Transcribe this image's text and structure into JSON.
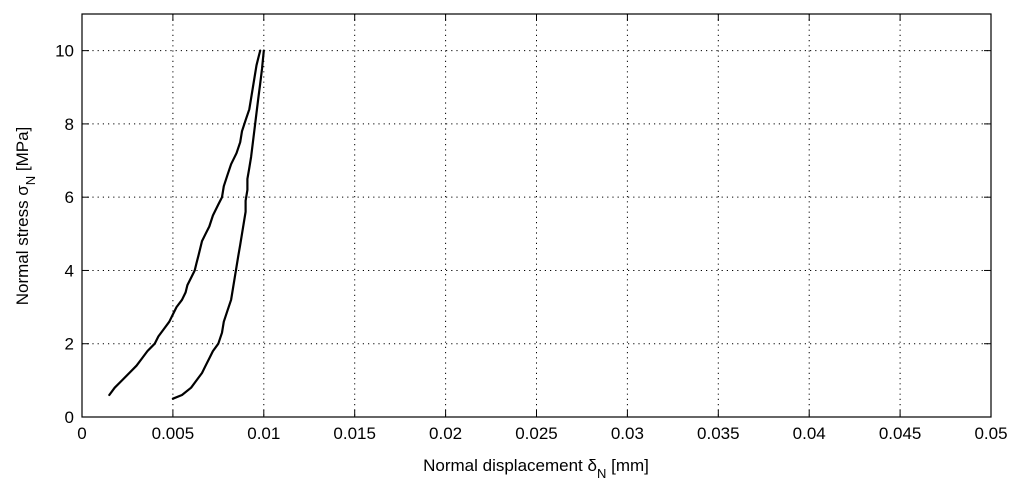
{
  "chart_data": {
    "type": "line",
    "title": "",
    "xlabel": {
      "text": "Normal displacement δ",
      "subscript": "N",
      "suffix": " [mm]"
    },
    "ylabel": {
      "text": "Normal stress σ",
      "subscript": "N",
      "suffix": " [MPa]"
    },
    "xlim": [
      0,
      0.05
    ],
    "ylim": [
      0,
      11
    ],
    "xticks": [
      0,
      0.005,
      0.01,
      0.015,
      0.02,
      0.025,
      0.03,
      0.035,
      0.04,
      0.045,
      0.05
    ],
    "xtick_labels": [
      "0",
      "0.005",
      "0.01",
      "0.015",
      "0.02",
      "0.025",
      "0.03",
      "0.035",
      "0.04",
      "0.045",
      "0.05"
    ],
    "yticks": [
      0,
      2,
      4,
      6,
      8,
      10
    ],
    "ytick_labels": [
      "0",
      "2",
      "4",
      "6",
      "8",
      "10"
    ],
    "grid": true,
    "legend": false,
    "series_color": "#000000",
    "series": [
      {
        "x": [
          0.0015,
          0.0018,
          0.0022,
          0.0026,
          0.003,
          0.0033,
          0.0036,
          0.004,
          0.0042,
          0.0045,
          0.0048,
          0.005,
          0.0052,
          0.0055,
          0.0057,
          0.0058,
          0.006,
          0.0062,
          0.0063,
          0.0064,
          0.0065,
          0.0066,
          0.0068,
          0.007,
          0.0072,
          0.0075,
          0.0077,
          0.0078,
          0.008,
          0.0082,
          0.0085,
          0.0087,
          0.0088,
          0.009,
          0.0092,
          0.0093,
          0.0094,
          0.0095,
          0.0096,
          0.0097,
          0.0098
        ],
        "y": [
          0.6,
          0.8,
          1.0,
          1.2,
          1.4,
          1.6,
          1.8,
          2.0,
          2.2,
          2.4,
          2.6,
          2.8,
          3.0,
          3.2,
          3.4,
          3.6,
          3.8,
          4.0,
          4.2,
          4.4,
          4.6,
          4.8,
          5.0,
          5.2,
          5.5,
          5.8,
          6.0,
          6.3,
          6.6,
          6.9,
          7.2,
          7.5,
          7.8,
          8.1,
          8.4,
          8.7,
          9.0,
          9.3,
          9.6,
          9.8,
          10.0
        ]
      },
      {
        "x": [
          0.005,
          0.0055,
          0.006,
          0.0063,
          0.0066,
          0.0068,
          0.007,
          0.0072,
          0.0075,
          0.0077,
          0.0078,
          0.008,
          0.0082,
          0.0083,
          0.0084,
          0.0085,
          0.0086,
          0.0087,
          0.0088,
          0.0089,
          0.009,
          0.009,
          0.0091,
          0.0091,
          0.0092,
          0.0093,
          0.0094,
          0.0095,
          0.0096,
          0.0097,
          0.0098,
          0.0099,
          0.01
        ],
        "y": [
          0.5,
          0.6,
          0.8,
          1.0,
          1.2,
          1.4,
          1.6,
          1.8,
          2.0,
          2.3,
          2.6,
          2.9,
          3.2,
          3.5,
          3.8,
          4.1,
          4.4,
          4.7,
          5.0,
          5.3,
          5.6,
          5.9,
          6.2,
          6.5,
          6.8,
          7.1,
          7.5,
          7.9,
          8.3,
          8.7,
          9.1,
          9.5,
          10.0
        ]
      }
    ]
  }
}
